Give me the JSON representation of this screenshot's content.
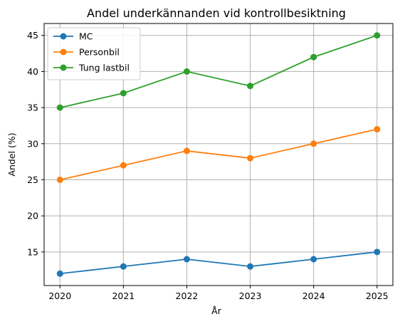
{
  "chart_data": {
    "type": "line",
    "title": "Andel underkännanden vid kontrollbesiktning",
    "xlabel": "År",
    "ylabel": "Andel (%)",
    "x": [
      2020,
      2021,
      2022,
      2023,
      2024,
      2025
    ],
    "x_ticks": [
      "2020",
      "2021",
      "2022",
      "2023",
      "2024",
      "2025"
    ],
    "y_ticks": [
      15,
      20,
      25,
      30,
      35,
      40,
      45
    ],
    "xlim": [
      2019.75,
      2025.25
    ],
    "ylim": [
      10.35,
      46.65
    ],
    "grid": true,
    "legend_position": "top-left",
    "marker": "circle",
    "series": [
      {
        "name": "MC",
        "color": "#1f77b4",
        "values": [
          12,
          13,
          14,
          13,
          14,
          15
        ]
      },
      {
        "name": "Personbil",
        "color": "#ff7f0e",
        "values": [
          25,
          27,
          29,
          28,
          30,
          32
        ]
      },
      {
        "name": "Tung lastbil",
        "color": "#2ca02c",
        "values": [
          35,
          37,
          40,
          38,
          42,
          45
        ]
      }
    ]
  }
}
